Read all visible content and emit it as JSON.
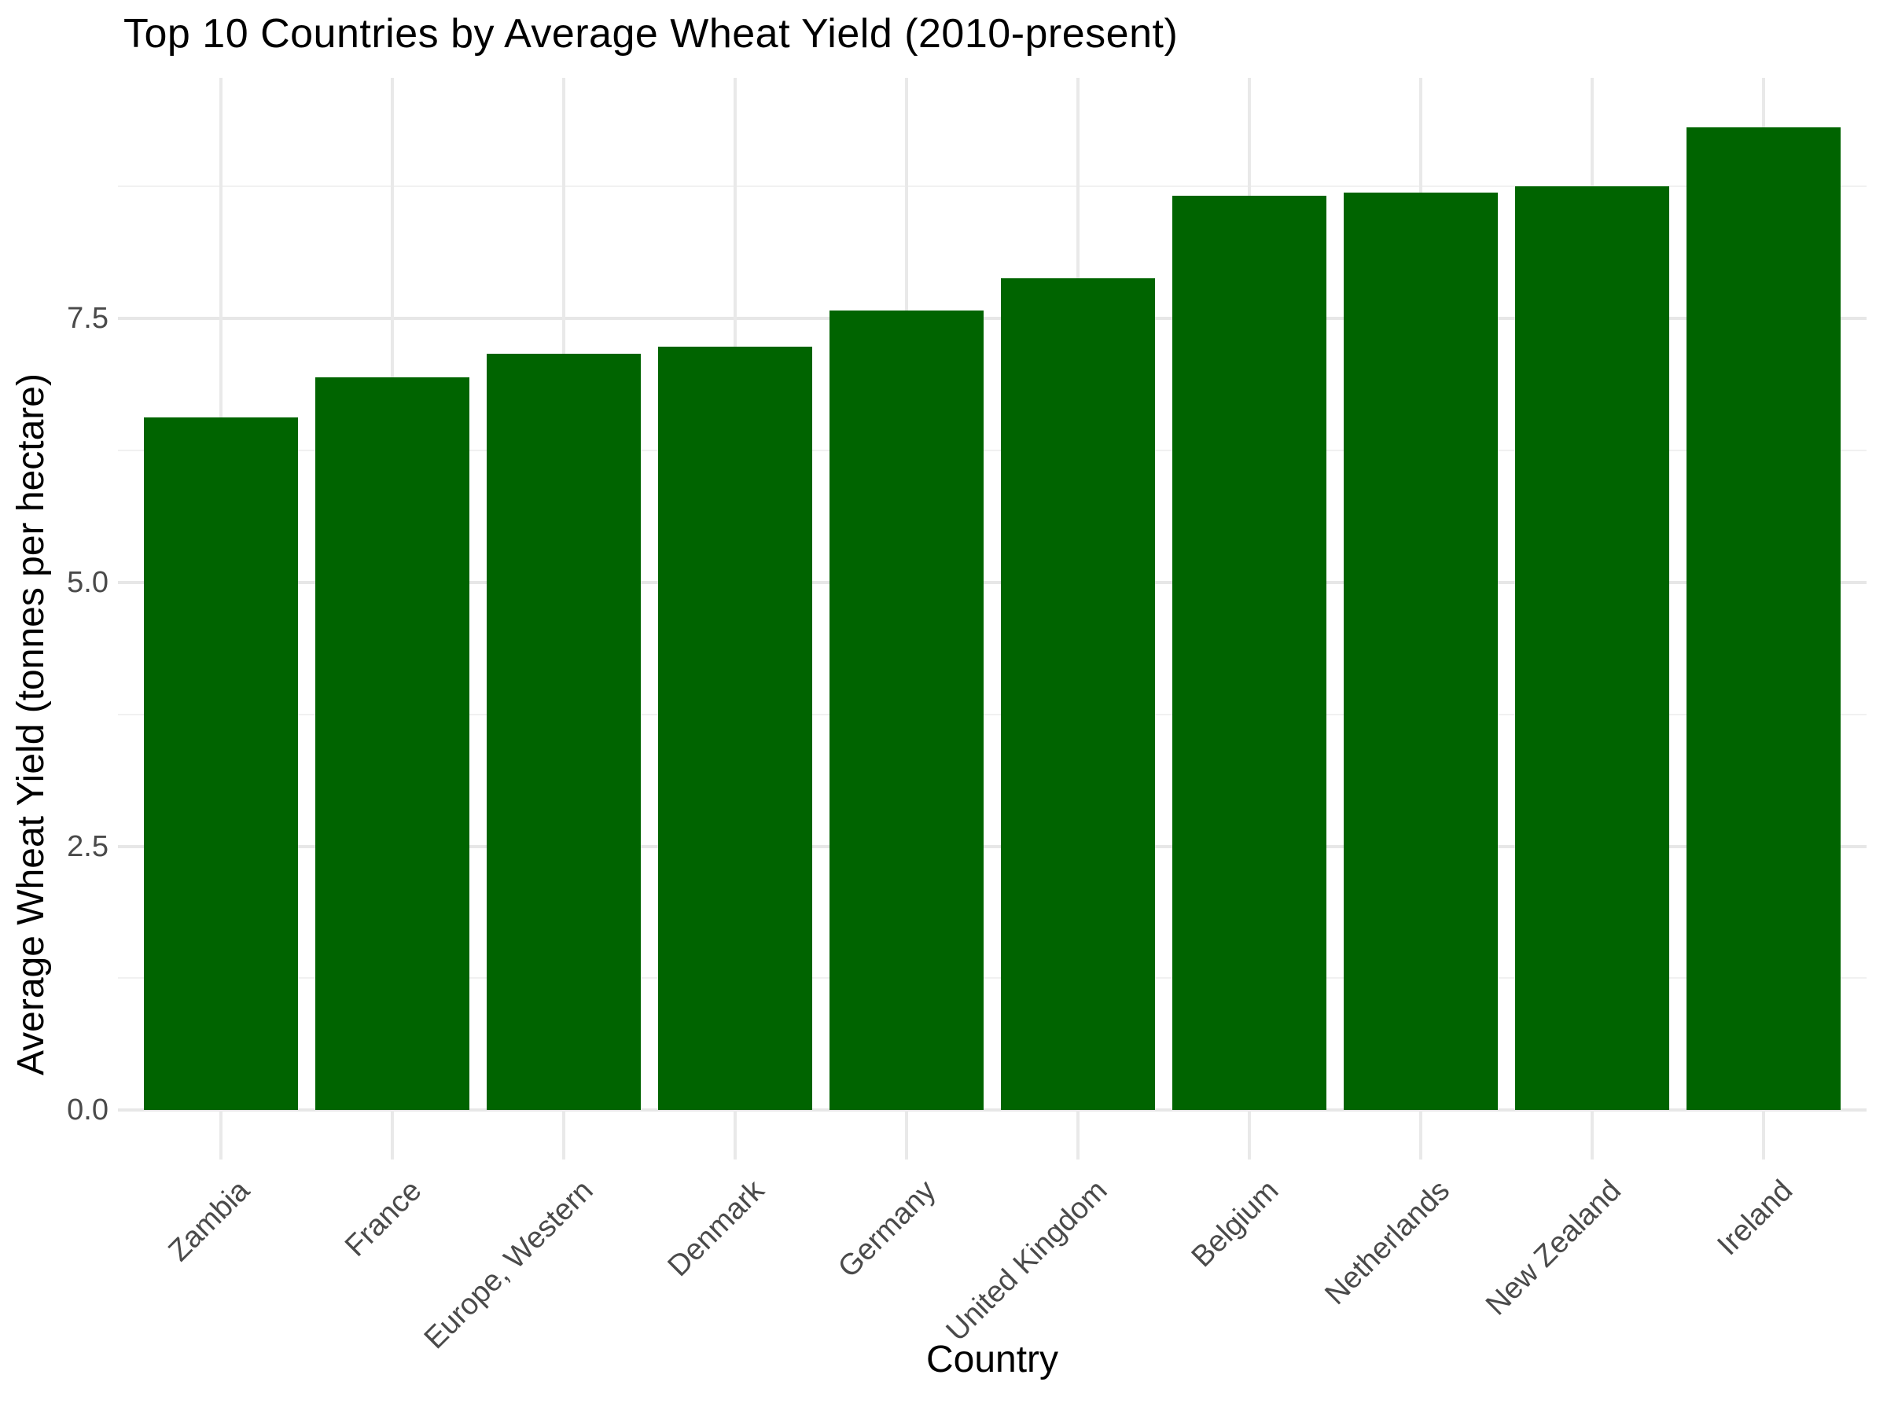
{
  "chart_data": {
    "type": "bar",
    "title": "Top 10 Countries by Average Wheat Yield (2010-present)",
    "xlabel": "Country",
    "ylabel": "Average Wheat Yield (tonnes per hectare)",
    "categories": [
      "Zambia",
      "France",
      "Europe, Western",
      "Denmark",
      "Germany",
      "United Kingdom",
      "Belgium",
      "Netherlands",
      "New Zealand",
      "Ireland"
    ],
    "values": [
      6.56,
      6.94,
      7.16,
      7.23,
      7.57,
      7.88,
      8.66,
      8.69,
      8.75,
      9.31
    ],
    "yticks": [
      0,
      2.5,
      5,
      7.5
    ],
    "ytick_labels": [
      "0.0",
      "2.5",
      "5.0",
      "7.5"
    ],
    "ylim": [
      0,
      9.78
    ],
    "grid": "major-and-minor",
    "legend": "none",
    "x_tick_rotation": 45,
    "colors": {
      "bar": "#006400",
      "grid_major": "#e7e7e7",
      "grid_minor": "#f1f1f1",
      "tick_label": "#4a4a4a",
      "text": "#000000",
      "background": "#ffffff"
    }
  }
}
